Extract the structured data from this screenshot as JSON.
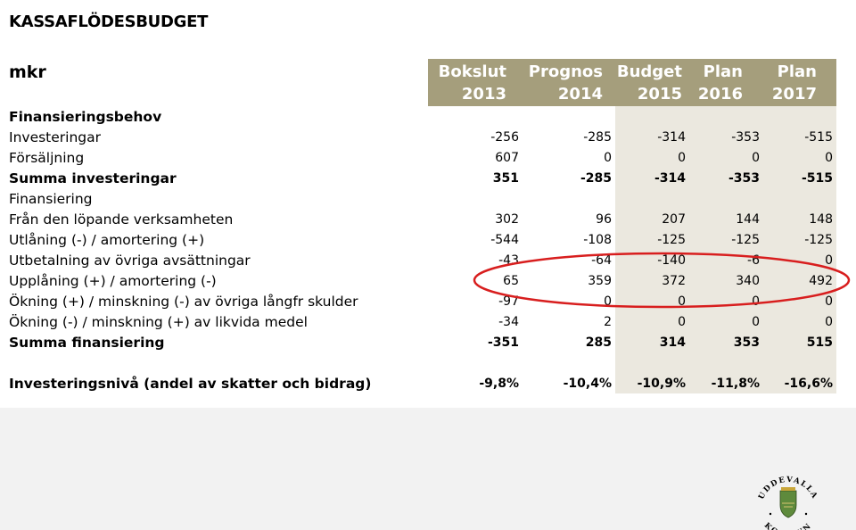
{
  "title": "KASSAFLÖDESBUDGET",
  "unit": "mkr",
  "columns": [
    {
      "line1": "Bokslut",
      "line2": "2013"
    },
    {
      "line1": "Prognos",
      "line2": "2014"
    },
    {
      "line1": "Budget",
      "line2": "2015"
    },
    {
      "line1": "Plan",
      "line2": "2016"
    },
    {
      "line1": "Plan",
      "line2": "2017"
    }
  ],
  "rows": [
    {
      "label": "Finansieringsbehov",
      "bold": true,
      "values": [
        "",
        "",
        "",
        "",
        ""
      ]
    },
    {
      "label": "Investeringar",
      "bold": false,
      "values": [
        "-256",
        "-285",
        "-314",
        "-353",
        "-515"
      ]
    },
    {
      "label": "Försäljning",
      "bold": false,
      "values": [
        "607",
        "0",
        "0",
        "0",
        "0"
      ]
    },
    {
      "label": "Summa investeringar",
      "bold": true,
      "values": [
        "351",
        "-285",
        "-314",
        "-353",
        "-515"
      ]
    },
    {
      "label": "Finansiering",
      "bold": false,
      "values": [
        "",
        "",
        "",
        "",
        ""
      ]
    },
    {
      "label": "Från den löpande verksamheten",
      "bold": false,
      "values": [
        "302",
        "96",
        "207",
        "144",
        "148"
      ]
    },
    {
      "label": "Utlåning (-) / amortering (+)",
      "bold": false,
      "values": [
        "-544",
        "-108",
        "-125",
        "-125",
        "-125"
      ]
    },
    {
      "label": "Utbetalning av övriga avsättningar",
      "bold": false,
      "values": [
        "-43",
        "-64",
        "-140",
        "-6",
        "0"
      ]
    },
    {
      "label": "Upplåning (+) / amortering (-)",
      "bold": false,
      "values": [
        "65",
        "359",
        "372",
        "340",
        "492"
      ]
    },
    {
      "label": "Ökning (+) / minskning (-) av övriga långfr skulder",
      "bold": false,
      "values": [
        "-97",
        "0",
        "0",
        "0",
        "0"
      ]
    },
    {
      "label": "Ökning (-) / minskning (+) av likvida medel",
      "bold": false,
      "values": [
        "-34",
        "2",
        "0",
        "0",
        "0"
      ]
    },
    {
      "label": "Summa finansiering",
      "bold": true,
      "values": [
        "-351",
        "285",
        "314",
        "353",
        "515"
      ]
    },
    {
      "label": "",
      "bold": false,
      "values": [
        "",
        "",
        "",
        "",
        ""
      ]
    },
    {
      "label": "Investeringsnivå (andel av skatter och bidrag)",
      "bold": true,
      "values": [
        "-9,8%",
        "-10,4%",
        "-10,9%",
        "-11,8%",
        "-16,6%"
      ]
    }
  ],
  "highlight_row": 8,
  "logo": {
    "ring_top": "UDDEVALLA",
    "ring_bottom": "KOMMUN"
  },
  "colors": {
    "header": "#a59e7c",
    "budget_shade": "#ebe8df",
    "oval": "#d81e1e"
  }
}
